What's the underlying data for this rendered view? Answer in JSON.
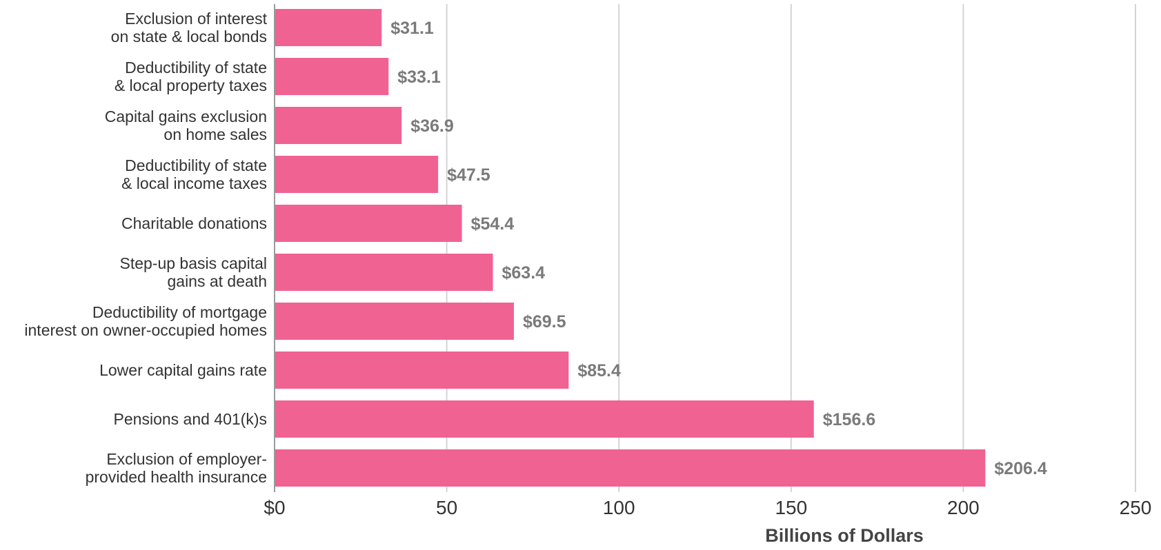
{
  "chart_data": {
    "type": "bar",
    "orientation": "horizontal",
    "categories": [
      [
        "Exclusion of interest",
        "on state & local bonds"
      ],
      [
        "Deductibility of state",
        "& local property taxes"
      ],
      [
        "Capital gains exclusion",
        "on home sales"
      ],
      [
        "Deductibility of state",
        "& local income taxes"
      ],
      [
        "Charitable donations"
      ],
      [
        "Step-up basis capital",
        "gains at death"
      ],
      [
        "Deductibility of mortgage",
        "interest on owner-occupied homes"
      ],
      [
        "Lower capital gains rate"
      ],
      [
        "Pensions and 401(k)s"
      ],
      [
        "Exclusion of employer-",
        "provided health insurance"
      ]
    ],
    "values": [
      31.1,
      33.1,
      36.9,
      47.5,
      54.4,
      63.4,
      69.5,
      85.4,
      156.6,
      206.4
    ],
    "value_labels": [
      "$31.1",
      "$33.1",
      "$36.9",
      "$47.5",
      "$54.4",
      "$63.4",
      "$69.5",
      "$85.4",
      "$156.6",
      "$206.4"
    ],
    "x_ticks": [
      0,
      50,
      100,
      150,
      200,
      250
    ],
    "x_tick_labels": [
      "$0",
      "50",
      "100",
      "150",
      "200",
      "250"
    ],
    "xlabel": "Billions of Dollars",
    "ylabel": "",
    "title": "",
    "xlim": [
      0,
      250
    ],
    "grid": "vertical",
    "legend": "none",
    "bar_color": "#f06292",
    "value_label_color": "#7a7a7a",
    "grid_color": "#d4d4d4"
  }
}
